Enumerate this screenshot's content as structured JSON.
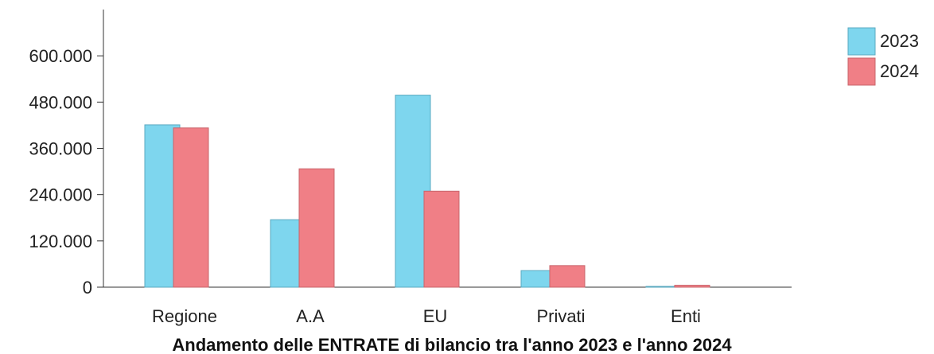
{
  "chart_data": {
    "type": "bar",
    "title": "Andamento delle ENTRATE di bilancio tra l'anno 2023 e l'anno 2024",
    "categories": [
      "Regione",
      "A.A",
      "EU",
      "Privati",
      "Enti"
    ],
    "series": [
      {
        "name": "2023",
        "values": [
          421000,
          175000,
          498000,
          43000,
          2000
        ],
        "color": "#7ed6ee"
      },
      {
        "name": "2024",
        "values": [
          413000,
          307000,
          249000,
          56000,
          5000
        ],
        "color": "#f07f86"
      }
    ],
    "yticks": [
      "0",
      "120.000",
      "240.000",
      "360.000",
      "480.000",
      "600.000"
    ],
    "ylim": [
      0,
      720000
    ],
    "grid": false,
    "legend_position": "top-right"
  }
}
